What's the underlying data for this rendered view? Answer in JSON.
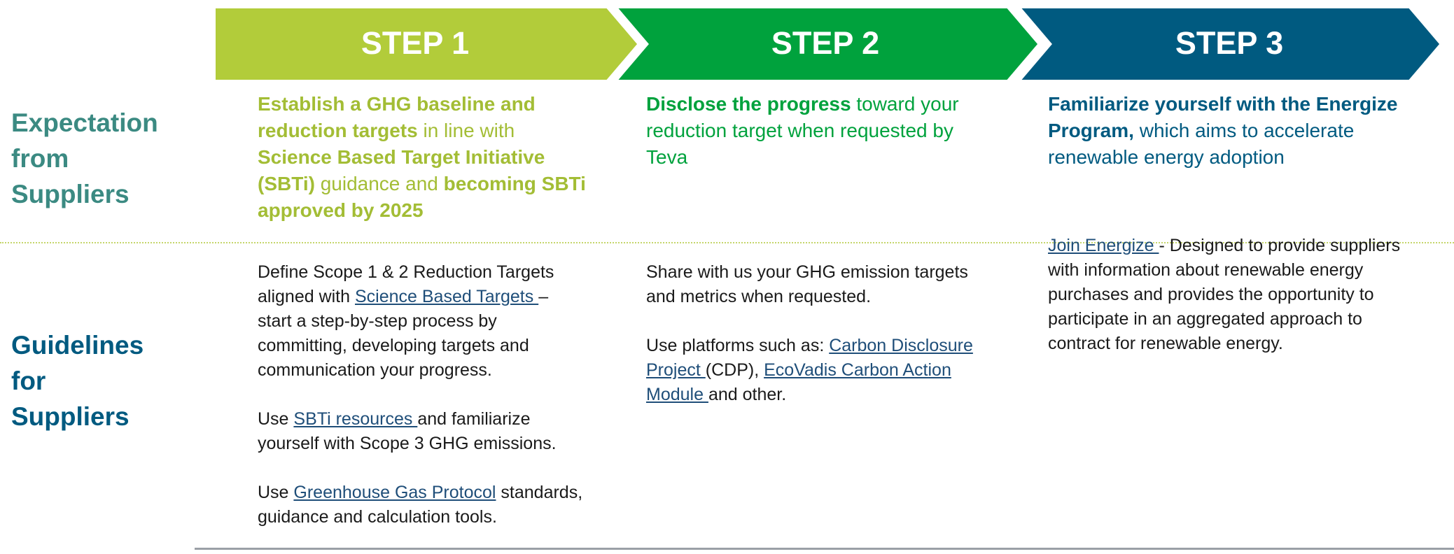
{
  "steps": [
    {
      "label": "STEP 1",
      "color": "#b2cc3a",
      "text_color": "#a3bd35"
    },
    {
      "label": "STEP 2",
      "color": "#00a23d",
      "text_color": "#00a23d"
    },
    {
      "label": "STEP 3",
      "color": "#005a80",
      "text_color": "#005a80"
    }
  ],
  "rows": [
    {
      "label": "Expectation from Suppliers",
      "color": "#3b8a82"
    },
    {
      "label": "Guidelines for Suppliers",
      "color": "#005a80"
    }
  ],
  "expectations": [
    [
      {
        "text": "Establish a GHG baseline and reduction targets",
        "style": "bold"
      },
      {
        "text": " in line with ",
        "style": "plain"
      },
      {
        "text": "Science Based Target Initiative (SBTi)",
        "style": "bold"
      },
      {
        "text": " guidance and ",
        "style": "plain"
      },
      {
        "text": "becoming SBTi approved by 2025",
        "style": "bold"
      }
    ],
    [
      {
        "text": "Disclose the progress",
        "style": "bold"
      },
      {
        "text": " toward your reduction target when requested by Teva",
        "style": "plain"
      }
    ],
    [
      {
        "text": "Familiarize yourself with the Energize Program,",
        "style": "bold"
      },
      {
        "text": " which aims to accelerate renewable energy adoption",
        "style": "plain"
      }
    ]
  ],
  "guidelines": [
    [
      [
        {
          "text": "Define Scope 1 & 2 Reduction Targets aligned with ",
          "style": "plain"
        },
        {
          "text": "Science Based Targets ",
          "style": "link"
        },
        {
          "text": "– start a step-by-step process by committing, developing targets and communication your progress.",
          "style": "plain"
        }
      ],
      [
        {
          "text": "Use ",
          "style": "plain"
        },
        {
          "text": "SBTi resources ",
          "style": "link"
        },
        {
          "text": "and familiarize yourself with Scope 3 GHG emissions.",
          "style": "plain"
        }
      ],
      [
        {
          "text": "Use ",
          "style": "plain"
        },
        {
          "text": "Greenhouse Gas Protocol",
          "style": "link"
        },
        {
          "text": " standards, guidance and calculation tools.",
          "style": "plain"
        }
      ]
    ],
    [
      [
        {
          "text": "Share with us your GHG emission targets and metrics when requested.",
          "style": "plain"
        }
      ],
      [
        {
          "text": "Use platforms such as: ",
          "style": "plain"
        },
        {
          "text": "Carbon Disclosure Project ",
          "style": "link"
        },
        {
          "text": "(CDP), ",
          "style": "plain"
        },
        {
          "text": "EcoVadis Carbon Action Module ",
          "style": "link"
        },
        {
          "text": "and other.",
          "style": "plain"
        }
      ]
    ],
    [
      [
        {
          "text": "Join Energize ",
          "style": "link"
        },
        {
          "text": "- Designed to provide suppliers with information about renewable energy purchases and provides the opportunity to participate in an aggregated approach to contract for renewable energy.",
          "style": "plain"
        }
      ]
    ]
  ]
}
